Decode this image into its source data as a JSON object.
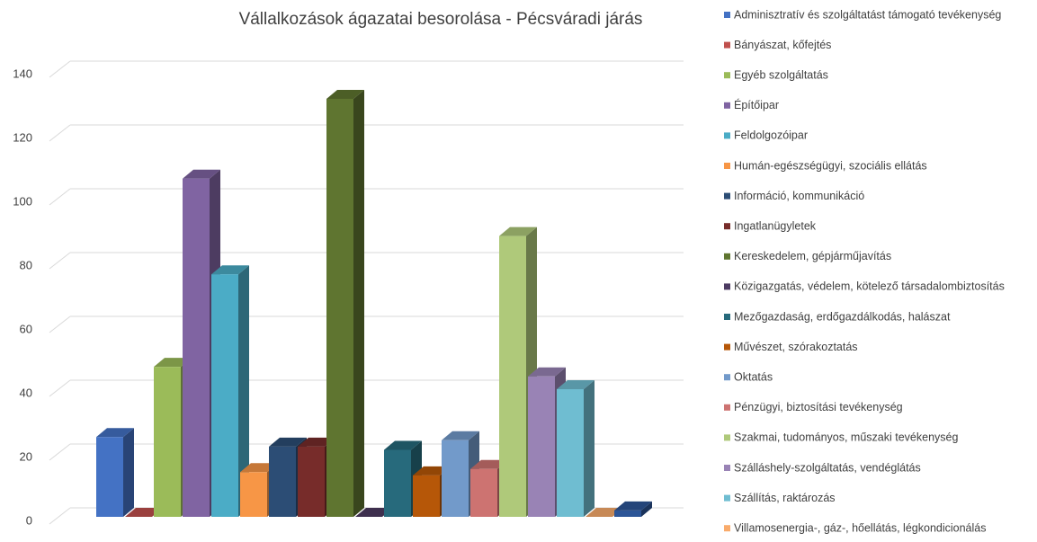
{
  "chart_data": {
    "type": "bar3d",
    "title": "Vállalkozások ágazatai besorolása - Pécsváradi járás",
    "ylim": [
      0,
      140
    ],
    "yticks": [
      0,
      20,
      40,
      60,
      80,
      100,
      120,
      140
    ],
    "grid": true,
    "legend": "right",
    "series": [
      {
        "name": "Adminisztratív és szolgáltatást támogató tevékenység",
        "color": "#4472c4",
        "values": [
          25
        ]
      },
      {
        "name": "Bányászat, kőfejtés",
        "color": "#c0504d",
        "values": [
          0
        ]
      },
      {
        "name": "Egyéb szolgáltatás",
        "color": "#9bbb59",
        "values": [
          47
        ]
      },
      {
        "name": "Építőipar",
        "color": "#8064a2",
        "values": [
          106
        ]
      },
      {
        "name": "Feldolgozóipar",
        "color": "#4bacc6",
        "values": [
          76
        ]
      },
      {
        "name": "Humán-egészségügyi, szociális ellátás",
        "color": "#f79646",
        "values": [
          14
        ]
      },
      {
        "name": "Információ, kommunikáció",
        "color": "#2c4d75",
        "values": [
          22
        ]
      },
      {
        "name": "Ingatlanügyletek",
        "color": "#772c2a",
        "values": [
          22
        ]
      },
      {
        "name": "Kereskedelem, gépjárműjavítás",
        "color": "#5f7530",
        "values": [
          131
        ]
      },
      {
        "name": "Közigazgatás, védelem, kötelező társadalombiztosítás",
        "color": "#4d3b62",
        "values": [
          0
        ]
      },
      {
        "name": "Mezőgazdaság, erdőgazdálkodás, halászat",
        "color": "#276a7c",
        "values": [
          21
        ]
      },
      {
        "name": "Művészet, szórakoztatás",
        "color": "#b65708",
        "values": [
          13
        ]
      },
      {
        "name": "Oktatás",
        "color": "#729aca",
        "values": [
          24
        ]
      },
      {
        "name": "Pénzügyi, biztosítási tevékenység",
        "color": "#cd7371",
        "values": [
          15
        ]
      },
      {
        "name": "Szakmai, tudományos, műszaki tevékenység",
        "color": "#afc97a",
        "values": [
          88
        ]
      },
      {
        "name": "Szálláshely-szolgáltatás, vendéglátás",
        "color": "#9983b5",
        "values": [
          44
        ]
      },
      {
        "name": "Szállítás, raktározás",
        "color": "#6fbdd1",
        "values": [
          40
        ]
      },
      {
        "name": "Villamosenergia-, gáz-, hőellátás, légkondicionálás",
        "color": "#f9ab6b",
        "values": [
          0
        ]
      },
      {
        "name": null,
        "color": "#2c5597",
        "values": [
          2
        ]
      }
    ]
  }
}
